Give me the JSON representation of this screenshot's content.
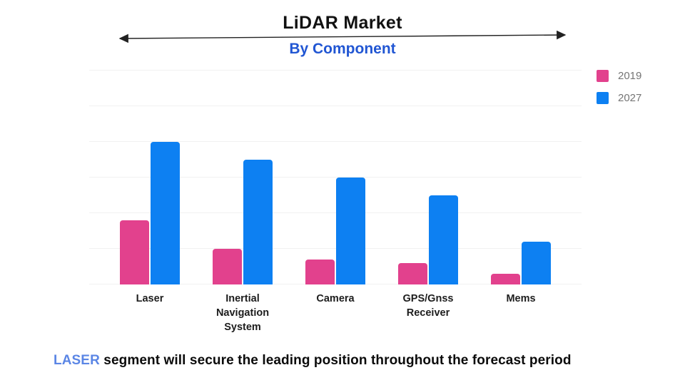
{
  "header": {
    "title": "LiDAR Market",
    "subtitle": "By Component"
  },
  "legend": [
    {
      "label": "2019",
      "color": "#E2418D"
    },
    {
      "label": "2027",
      "color": "#0D80F2"
    }
  ],
  "caption": {
    "highlight": "LASER",
    "rest": "segment will secure the leading position throughout the forecast period"
  },
  "colors": {
    "series_2019": "#E2418D",
    "series_2027": "#0D80F2",
    "subtitle_blue": "#2156D3",
    "caption_highlight_blue": "#5B86E5",
    "gridline": "#f1f1f1",
    "legend_text": "#757575",
    "arrow": "#222222"
  },
  "chart_data": {
    "type": "bar",
    "title": "LiDAR Market",
    "subtitle": "By Component",
    "categories": [
      "Laser",
      "Inertial Navigation System",
      "Camera",
      "GPS/Gnss Receiver",
      "Mems"
    ],
    "series": [
      {
        "name": "2019",
        "color": "#E2418D",
        "values": [
          1.8,
          1.0,
          0.7,
          0.6,
          0.3
        ]
      },
      {
        "name": "2027",
        "color": "#0D80F2",
        "values": [
          4.0,
          3.5,
          3.0,
          2.5,
          1.2
        ]
      }
    ],
    "xlabel": "",
    "ylabel": "",
    "ylim": [
      0,
      6
    ],
    "grid": true,
    "y_axis_labels_shown": false,
    "note": "No numeric y-axis labels shown; values estimated in horizontal-gridline units",
    "legend_position": "top-right"
  }
}
